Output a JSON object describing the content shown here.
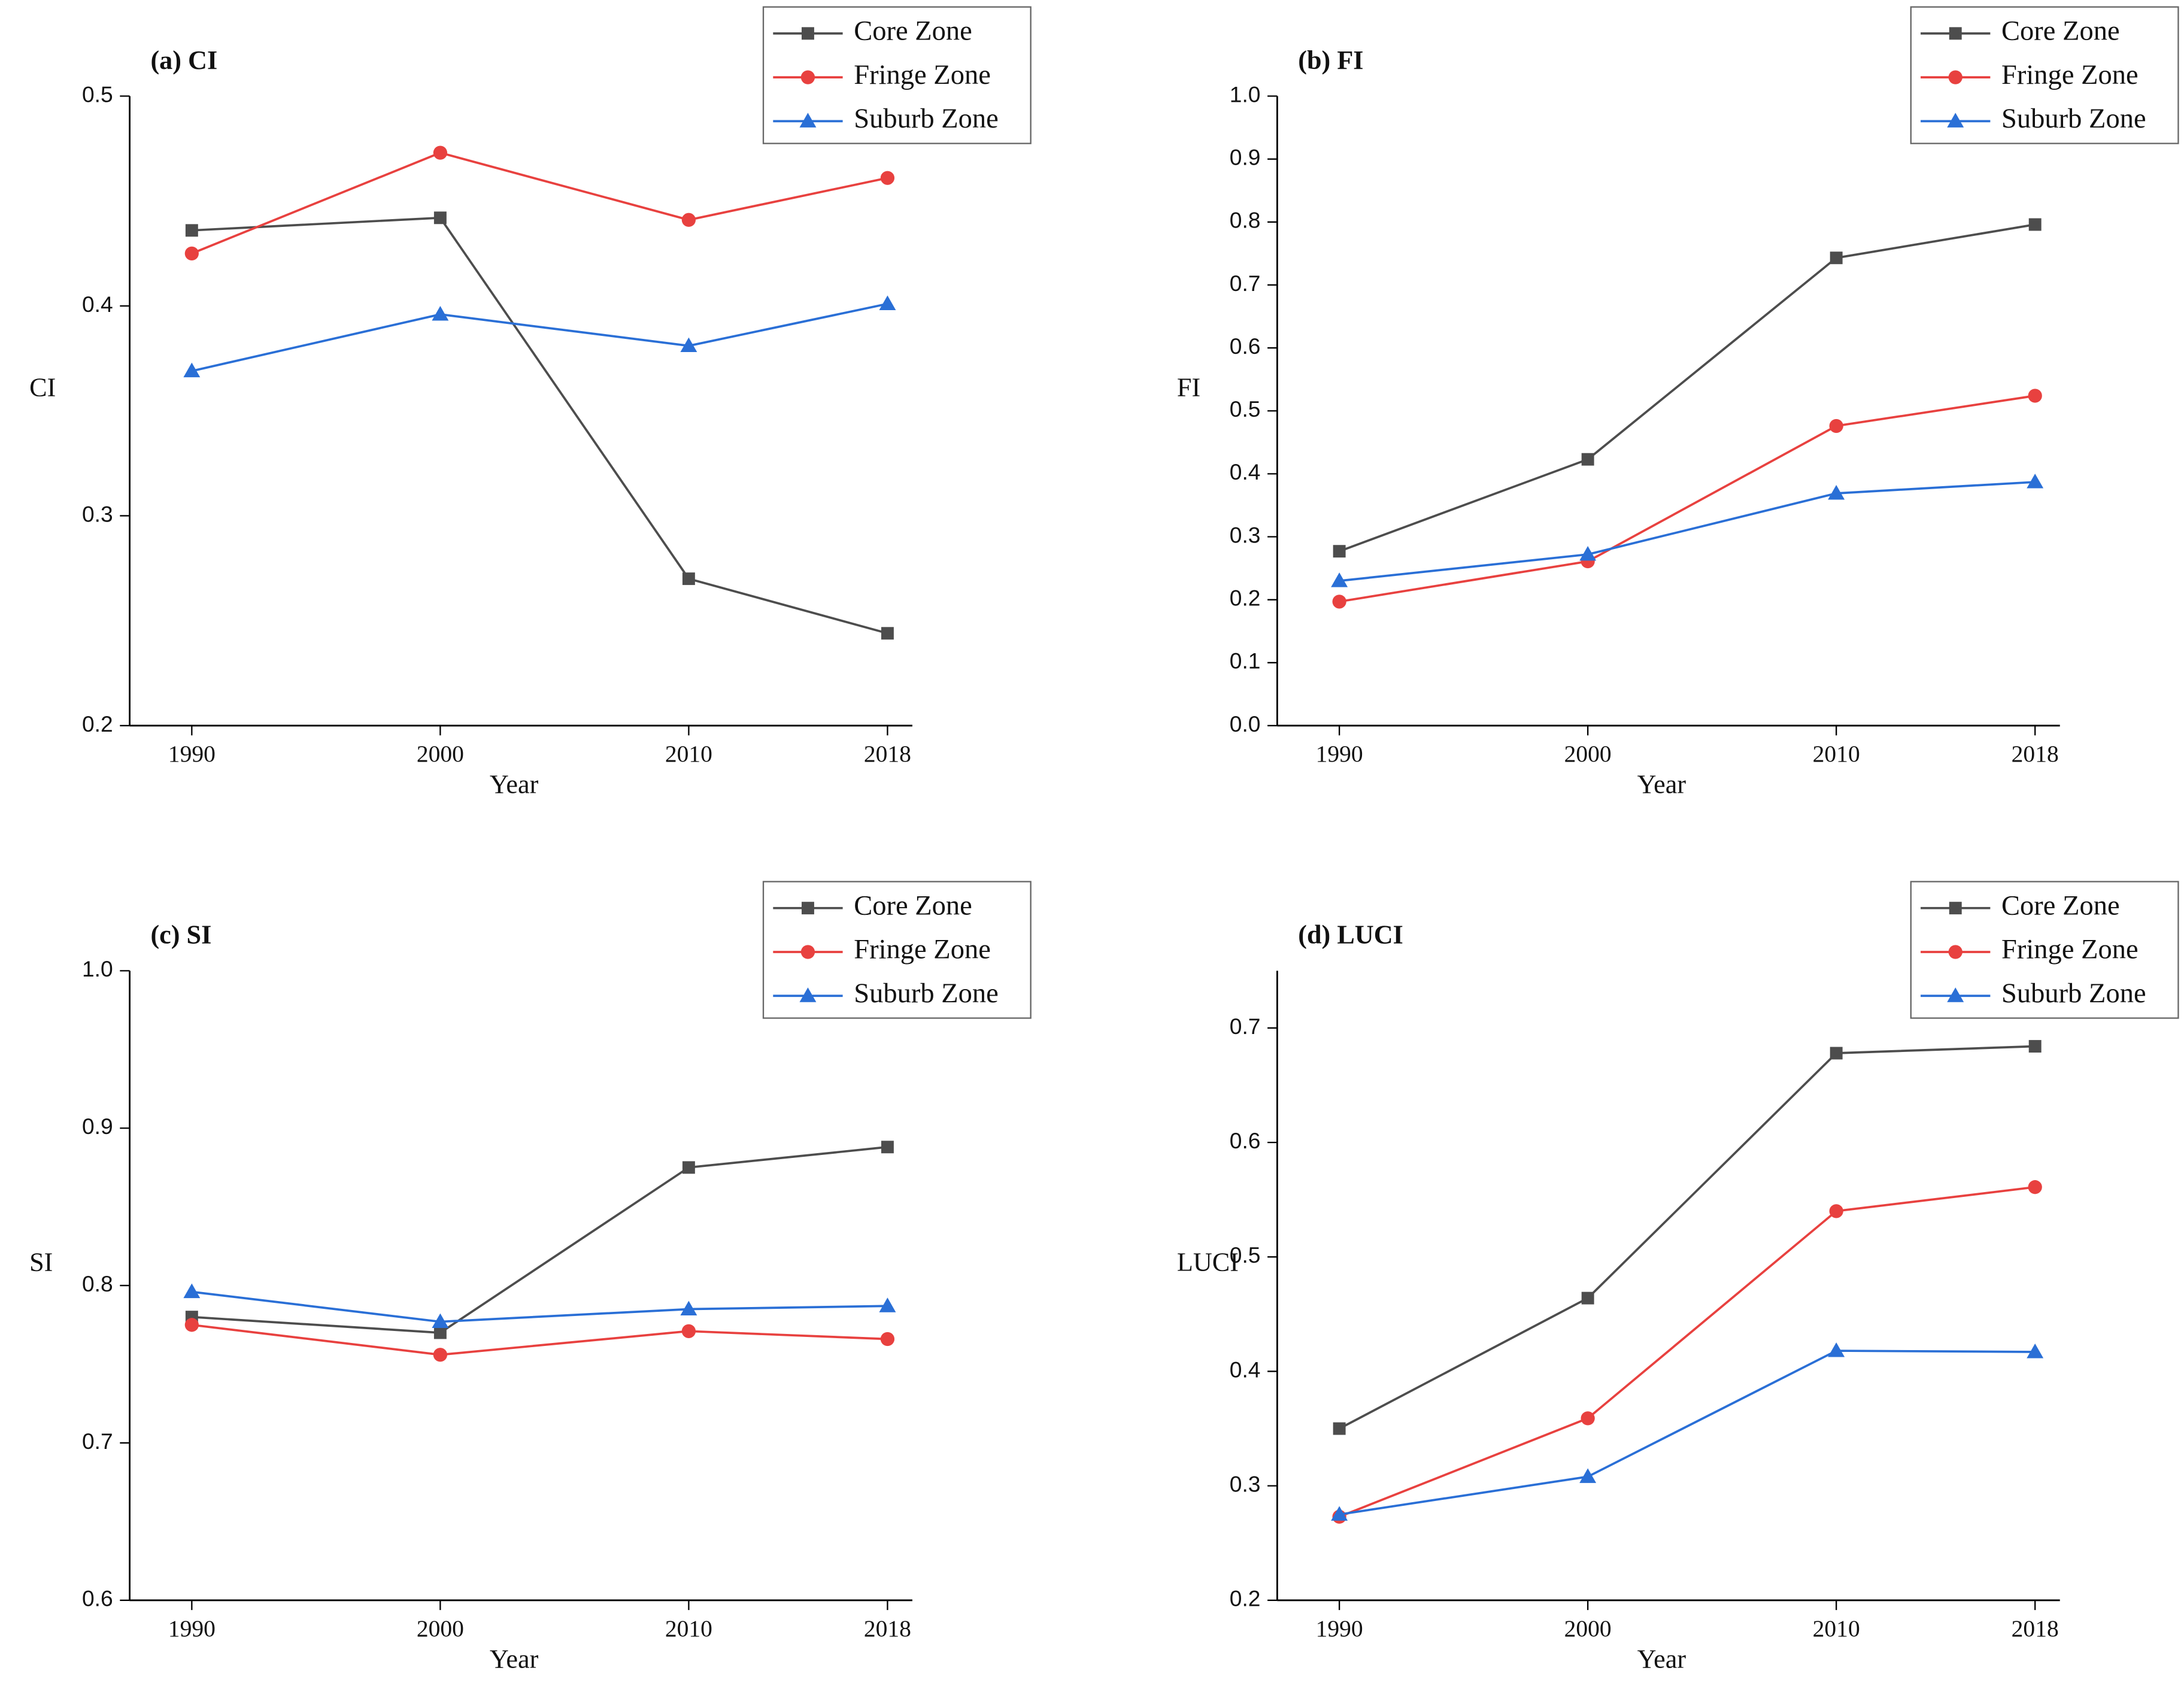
{
  "chart_data": [
    {
      "type": "line",
      "title": "(a) CI",
      "x_label": "Year",
      "y_label": "CI",
      "x": [
        1990,
        2000,
        2010,
        2018
      ],
      "xlim": [
        1987.5,
        2019
      ],
      "xticks": [
        1990,
        2000,
        2010,
        2018
      ],
      "ylim": [
        0.2,
        0.5
      ],
      "yticks": [
        0.2,
        0.3,
        0.4,
        0.5
      ],
      "legend": "upper right",
      "series": [
        {
          "name": "Core Zone",
          "color": "#4d4d4d",
          "marker": "square",
          "values": [
            0.436,
            0.442,
            0.27,
            0.244
          ]
        },
        {
          "name": "Fringe Zone",
          "color": "#e8413f",
          "marker": "circle",
          "values": [
            0.425,
            0.473,
            0.441,
            0.461
          ]
        },
        {
          "name": "Suburb Zone",
          "color": "#2a6fd6",
          "marker": "triangle",
          "values": [
            0.369,
            0.396,
            0.381,
            0.401
          ]
        }
      ]
    },
    {
      "type": "line",
      "title": "(b) FI",
      "x_label": "Year",
      "y_label": "FI",
      "x": [
        1990,
        2000,
        2010,
        2018
      ],
      "xlim": [
        1987.5,
        2019
      ],
      "xticks": [
        1990,
        2000,
        2010,
        2018
      ],
      "ylim": [
        0,
        1
      ],
      "yticks": [
        {
          "value": 0,
          "label": "0.0"
        },
        0.1,
        0.2,
        0.3,
        0.4,
        0.5,
        0.6,
        0.7,
        0.8,
        0.9,
        {
          "value": 1,
          "label": "1.0"
        }
      ],
      "legend": "upper right",
      "series": [
        {
          "name": "Core Zone",
          "color": "#4d4d4d",
          "marker": "square",
          "values": [
            0.277,
            0.423,
            0.743,
            0.796
          ]
        },
        {
          "name": "Fringe Zone",
          "color": "#e8413f",
          "marker": "circle",
          "values": [
            0.197,
            0.261,
            0.476,
            0.524
          ]
        },
        {
          "name": "Suburb Zone",
          "color": "#2a6fd6",
          "marker": "triangle",
          "values": [
            0.23,
            0.272,
            0.369,
            0.387
          ]
        }
      ]
    },
    {
      "type": "line",
      "title": "(c) SI",
      "x_label": "Year",
      "y_label": "SI",
      "x": [
        1990,
        2000,
        2010,
        2018
      ],
      "xlim": [
        1987.5,
        2019
      ],
      "xticks": [
        1990,
        2000,
        2010,
        2018
      ],
      "ylim": [
        0.6,
        1.0
      ],
      "yticks": [
        0.6,
        0.7,
        0.8,
        0.9,
        {
          "value": 1,
          "label": "1.0"
        }
      ],
      "legend": "upper right",
      "series": [
        {
          "name": "Core Zone",
          "color": "#4d4d4d",
          "marker": "square",
          "values": [
            0.78,
            0.77,
            0.875,
            0.888
          ]
        },
        {
          "name": "Fringe Zone",
          "color": "#e8413f",
          "marker": "circle",
          "values": [
            0.775,
            0.756,
            0.771,
            0.766
          ]
        },
        {
          "name": "Suburb Zone",
          "color": "#2a6fd6",
          "marker": "triangle",
          "values": [
            0.796,
            0.777,
            0.785,
            0.787
          ]
        }
      ]
    },
    {
      "type": "line",
      "title": "(d) LUCI",
      "x_label": "Year",
      "y_label": "LUCI",
      "x": [
        1990,
        2000,
        2010,
        2018
      ],
      "xlim": [
        1987.5,
        2019
      ],
      "xticks": [
        1990,
        2000,
        2010,
        2018
      ],
      "ylim": [
        0.2,
        0.75
      ],
      "yticks": [
        0.2,
        0.3,
        0.4,
        0.5,
        0.6,
        0.7
      ],
      "legend": "upper right",
      "series": [
        {
          "name": "Core Zone",
          "color": "#4d4d4d",
          "marker": "square",
          "values": [
            0.35,
            0.464,
            0.678,
            0.684
          ]
        },
        {
          "name": "Fringe Zone",
          "color": "#e8413f",
          "marker": "circle",
          "values": [
            0.273,
            0.359,
            0.54,
            0.561
          ]
        },
        {
          "name": "Suburb Zone",
          "color": "#2a6fd6",
          "marker": "triangle",
          "values": [
            0.275,
            0.308,
            0.418,
            0.417
          ]
        }
      ]
    }
  ]
}
